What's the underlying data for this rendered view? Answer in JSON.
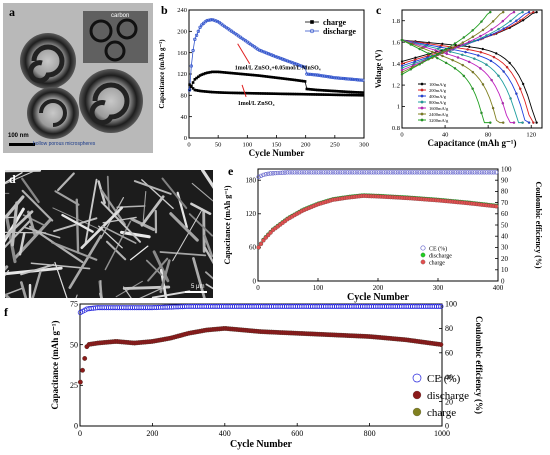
{
  "panels": {
    "a": {
      "letter": "a",
      "labels": {
        "carbon": "carbon",
        "hollow": "hollow porous microspheres",
        "scalebar": "100 nm"
      }
    },
    "d": {
      "letter": "d",
      "scalebar": "5 μm"
    }
  },
  "chart_data": [
    {
      "id": "b",
      "letter": "b",
      "type": "line",
      "xlabel": "Cycle Number",
      "ylabel": "Capacitance (mAh g⁻¹)",
      "xlim": [
        0,
        300
      ],
      "ylim": [
        0,
        240
      ],
      "xticks": [
        0,
        50,
        100,
        150,
        200,
        250,
        300
      ],
      "yticks": [
        0,
        40,
        80,
        120,
        160,
        200,
        240
      ],
      "legend": {
        "placement": "top-right",
        "entries": [
          "charge",
          "discharge"
        ]
      },
      "annotations": [
        {
          "text": "1mol/L ZnSO₄+0.05mol/L MnSO₄",
          "x": 152,
          "y": 128
        },
        {
          "text": "1mol/L ZnSO₄",
          "x": 115,
          "y": 62
        }
      ],
      "series": [
        {
          "name": "charge",
          "color": "#000000",
          "marker": "filled-square",
          "x": [
            1,
            5,
            10,
            20,
            30,
            40,
            50,
            60,
            80,
            100,
            120,
            150,
            180,
            200,
            201,
            220,
            250,
            280,
            300
          ],
          "y": [
            90,
            100,
            110,
            118,
            122,
            124,
            124,
            123,
            121,
            119,
            117,
            113,
            109,
            106,
            92,
            90,
            88,
            86,
            85
          ]
        },
        {
          "name": "discharge",
          "color": "#3355cc",
          "marker": "open-circle",
          "x": [
            1,
            5,
            10,
            20,
            30,
            40,
            50,
            60,
            80,
            100,
            120,
            150,
            180,
            200,
            201,
            220,
            250,
            280,
            300
          ],
          "y": [
            90,
            150,
            185,
            210,
            220,
            222,
            218,
            210,
            195,
            180,
            165,
            152,
            140,
            132,
            120,
            118,
            113,
            110,
            108
          ]
        },
        {
          "name": "",
          "color": "#000000",
          "marker": "filled-square",
          "x": [
            1,
            5,
            10,
            20,
            40,
            60,
            100,
            150,
            200,
            250,
            300
          ],
          "y": [
            100,
            95,
            90,
            88,
            86,
            85,
            84,
            83,
            82,
            81,
            80
          ]
        }
      ]
    },
    {
      "id": "c",
      "letter": "c",
      "type": "line",
      "xlabel": "Capacitance (mAh g⁻¹)",
      "ylabel": "Voltage (V)",
      "xlim": [
        0,
        130
      ],
      "ylim": [
        0.8,
        1.9
      ],
      "xticks": [
        0,
        40,
        80,
        120
      ],
      "yticks": [
        0.8,
        1.0,
        1.2,
        1.4,
        1.6,
        1.8
      ],
      "legend": {
        "placement": "bottom-left",
        "entries": [
          "100mA/g",
          "200mA/g",
          "400mA/g",
          "800mA/g",
          "1600mA/g",
          "2400mA/g",
          "3200mA/g"
        ]
      },
      "series": [
        {
          "name": "100mA/g",
          "color": "#000000",
          "capacity": 125
        },
        {
          "name": "200mA/g",
          "color": "#e02020",
          "capacity": 122
        },
        {
          "name": "400mA/g",
          "color": "#2040e0",
          "capacity": 118
        },
        {
          "name": "800mA/g",
          "color": "#20a0a0",
          "capacity": 112
        },
        {
          "name": "1600mA/g",
          "color": "#c020c0",
          "capacity": 104
        },
        {
          "name": "2400mA/g",
          "color": "#808020",
          "capacity": 94
        },
        {
          "name": "3200mA/g",
          "color": "#20a020",
          "capacity": 82
        }
      ]
    },
    {
      "id": "e",
      "letter": "e",
      "type": "scatter",
      "xlabel": "Cycle Number",
      "ylabel": "Capacitance (mAh g⁻¹)",
      "y2label": "Coulombic efficiency (%)",
      "xlim": [
        0,
        400
      ],
      "ylim": [
        0,
        200
      ],
      "y2lim": [
        0,
        100
      ],
      "xticks": [
        0,
        100,
        200,
        300,
        400
      ],
      "yticks": [
        0,
        60,
        120,
        180
      ],
      "y2ticks": [
        0,
        10,
        20,
        30,
        40,
        50,
        60,
        70,
        80,
        90,
        100
      ],
      "legend": {
        "placement": "bottom-right",
        "entries": [
          "CE (%)",
          "discharge",
          "charge"
        ]
      },
      "series": [
        {
          "name": "CE (%)",
          "axis": "y2",
          "color": "#6666cc",
          "marker": "open-circle",
          "x": [
            1,
            10,
            20,
            50,
            100,
            150,
            200,
            250,
            300,
            350,
            400
          ],
          "y": [
            93,
            95,
            96,
            97,
            97,
            97,
            97,
            97,
            97,
            97,
            97
          ]
        },
        {
          "name": "discharge",
          "axis": "y",
          "color": "#22cc22",
          "marker": "filled-circle",
          "x": [
            1,
            10,
            25,
            50,
            75,
            100,
            125,
            150,
            175,
            200,
            250,
            300,
            350,
            400
          ],
          "y": [
            60,
            75,
            92,
            112,
            127,
            138,
            146,
            150,
            153,
            152,
            149,
            145,
            140,
            134
          ]
        },
        {
          "name": "charge",
          "axis": "y",
          "color": "#e05050",
          "marker": "filled-circle",
          "x": [
            1,
            10,
            25,
            50,
            75,
            100,
            125,
            150,
            175,
            200,
            250,
            300,
            350,
            400
          ],
          "y": [
            60,
            74,
            91,
            111,
            126,
            137,
            145,
            149,
            152,
            151,
            148,
            144,
            139,
            133
          ]
        }
      ]
    },
    {
      "id": "f",
      "letter": "f",
      "type": "scatter",
      "xlabel": "Cycle Number",
      "ylabel": "Capacitance (mAh g⁻¹)",
      "y2label": "Coulombic efficiency (%)",
      "xlim": [
        0,
        1000
      ],
      "ylim": [
        0,
        75
      ],
      "y2lim": [
        0,
        100
      ],
      "xticks": [
        0,
        200,
        400,
        600,
        800,
        1000
      ],
      "yticks": [
        0,
        25,
        50,
        75
      ],
      "y2ticks": [
        0,
        20,
        40,
        60,
        80,
        100
      ],
      "legend": {
        "placement": "bottom-right",
        "entries": [
          "CE (%)",
          "discharge",
          "charge"
        ]
      },
      "series": [
        {
          "name": "CE (%)",
          "axis": "y2",
          "color": "#2222dd",
          "marker": "open-circle",
          "x": [
            1,
            20,
            50,
            100,
            200,
            300,
            400,
            500,
            600,
            700,
            800,
            900,
            1000
          ],
          "y": [
            93,
            96,
            97,
            97,
            97,
            98,
            98,
            98,
            98,
            98,
            98,
            98,
            98
          ]
        },
        {
          "name": "discharge",
          "axis": "y",
          "color": "#8b1a1a",
          "marker": "filled-circle",
          "x": [
            1,
            20,
            50,
            100,
            150,
            200,
            250,
            300,
            350,
            400,
            450,
            500,
            600,
            700,
            800,
            900,
            1000
          ],
          "y": [
            27,
            50,
            51,
            52,
            51,
            52,
            54,
            57,
            59,
            60,
            59,
            58,
            57,
            56,
            55,
            53,
            50
          ]
        },
        {
          "name": "charge",
          "axis": "y",
          "color": "#808020",
          "marker": "filled-circle",
          "x": [
            1,
            20,
            50,
            100,
            150,
            200,
            250,
            300,
            350,
            400,
            450,
            500,
            600,
            700,
            800,
            900,
            1000
          ],
          "y": [
            27,
            50,
            51,
            52,
            51,
            52,
            54,
            57,
            59,
            60,
            59,
            58,
            57,
            56,
            55,
            53,
            50
          ]
        }
      ]
    }
  ]
}
